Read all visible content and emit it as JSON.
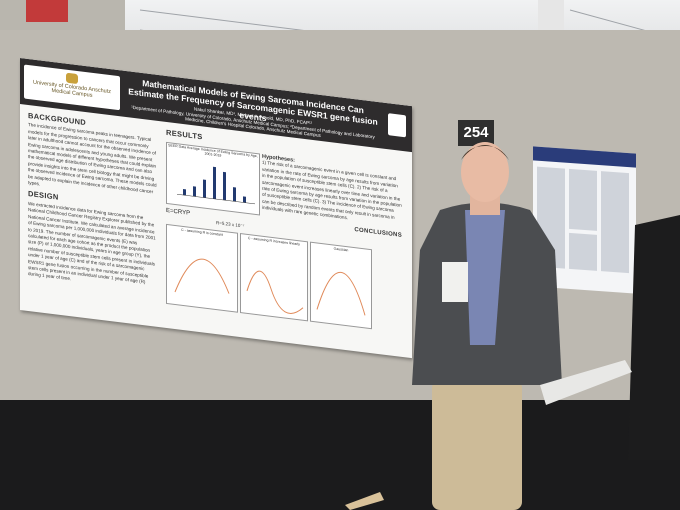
{
  "poster": {
    "institution": "University of Colorado Anschutz Medical Campus",
    "title": "Mathematical Models of Ewing Sarcoma Incidence Can Estimate the Frequency of Sarcomagenic EWSR1 gene fusion events",
    "authors": "Nakul Shankar, MD¹, Michael A. Arnold, MD, PhD, FCAP¹²",
    "affiliations": "¹Department of Pathology, University of Colorado, Anschutz Medical Campus; ²Department of Pathology and Laboratory Medicine, Children's Hospital Colorado, Anschutz Medical Campus",
    "background_heading": "BACKGROUND",
    "background_text": "The incidence of Ewing sarcoma peaks in teenagers. Typical models for the progression to cancers that occur commonly later in adulthood cannot account for the observed incidence of Ewing sarcoma in adolescents and young adults. We present mathematical models of different hypotheses that could explain the observed age distribution of Ewing sarcoma and can also provide insights into the stem cell biology that might be driving the observed incidence of Ewing sarcoma. These models could be adapted to explain the incidence of other childhood cancer types.",
    "design_heading": "DESIGN",
    "design_text": "We extracted incidence data for Ewing sarcoma from the National Childhood Cancer Registry Explorer published by the National Cancer Institute. We calculated an average incidence of Ewing sarcoma per 1,000,000 individuals for data from 2001 to 2019. The number of sarcomagenic events (E) was calculated for each age cohort as the product the population size (P) of 1,000,000 individuals, years in age group (Y), the relative number of susceptible stem cells present in individuals under 1 year of age (C) and of the risk of a sarcomagenic EWSR1 gene fusion occurring in the number of susceptible stem cells present in an individual under 1 year of age (R) during 1 year of time.",
    "results_heading": "RESULTS",
    "chart_title": "SEER Data Average Incidence of Ewing Sarcoma by Age, 2001-2019",
    "equation": "E=CRYP",
    "regression": "R=5.23 x 10⁻⁷",
    "hypotheses_heading": "Hypotheses:",
    "hypotheses_text": "1) The risk of a sarcomagenic event in a given cell is constant and variation in the rate of Ewing sarcoma by age results from variation in the population of susceptible stem cells (C). 2) The risk of a sarcomagenic event increases linearly over time and variation in the rate of Ewing sarcoma by age results from variation in the population of susceptible stem cells (C). 3) The incidence of Ewing sarcoma can be described by random events that only result in sarcoma in individuals with rare genetic combinations.",
    "conclusions_heading": "CONCLUSIONS",
    "panel_a": "C - assuming R is constant",
    "panel_b": "C - assuming R increases linearly",
    "panel_c": "Gaussian"
  },
  "booth_number": "254"
}
